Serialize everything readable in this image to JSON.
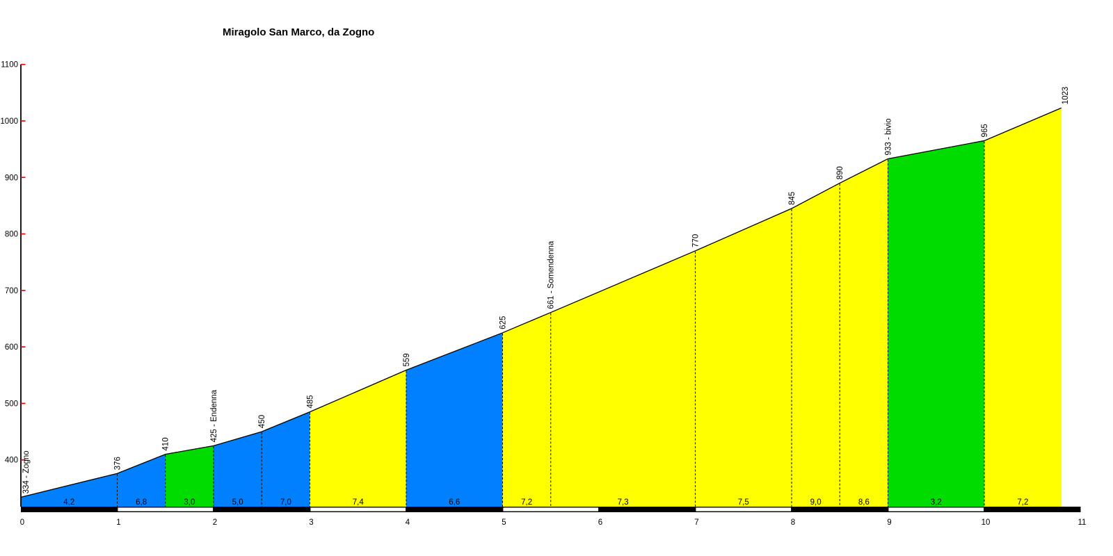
{
  "chart_data": {
    "type": "area",
    "title": "Miragolo San Marco, da Zogno",
    "x_unit": "km",
    "y_unit": "m",
    "xlim": [
      0,
      11
    ],
    "ylim": [
      317,
      1100
    ],
    "x_ticks": [
      0,
      1,
      2,
      3,
      4,
      5,
      6,
      7,
      8,
      9,
      10,
      11
    ],
    "y_ticks": [
      400,
      500,
      600,
      700,
      800,
      900,
      1000,
      1100
    ],
    "grid": false,
    "legend": false,
    "profile_points": [
      {
        "km": 0,
        "elev": 334,
        "label": "334 - Zogno"
      },
      {
        "km": 1,
        "elev": 376,
        "label": "376"
      },
      {
        "km": 1.5,
        "elev": 410,
        "label": "410"
      },
      {
        "km": 2,
        "elev": 425,
        "label": "425 - Endenna"
      },
      {
        "km": 2.5,
        "elev": 450,
        "label": "450"
      },
      {
        "km": 3,
        "elev": 485,
        "label": "485"
      },
      {
        "km": 4,
        "elev": 559,
        "label": "559"
      },
      {
        "km": 5,
        "elev": 625,
        "label": "625"
      },
      {
        "km": 5.5,
        "elev": 661,
        "label": "661 - Somendenna"
      },
      {
        "km": 7,
        "elev": 770,
        "label": "770"
      },
      {
        "km": 8,
        "elev": 845,
        "label": "845"
      },
      {
        "km": 8.5,
        "elev": 890,
        "label": "890"
      },
      {
        "km": 9,
        "elev": 933,
        "label": "933 - bivio"
      },
      {
        "km": 10,
        "elev": 965,
        "label": "965"
      },
      {
        "km": 10.8,
        "elev": 1023,
        "label": "1023"
      }
    ],
    "segments": [
      {
        "from_km": 0,
        "to_km": 1,
        "gradient_label": "4,2",
        "gradient_pct": 4.2,
        "color": "blue"
      },
      {
        "from_km": 1,
        "to_km": 1.5,
        "gradient_label": "6,8",
        "gradient_pct": 6.8,
        "color": "blue"
      },
      {
        "from_km": 1.5,
        "to_km": 2,
        "gradient_label": "3,0",
        "gradient_pct": 3.0,
        "color": "green"
      },
      {
        "from_km": 2,
        "to_km": 2.5,
        "gradient_label": "5,0",
        "gradient_pct": 5.0,
        "color": "blue"
      },
      {
        "from_km": 2.5,
        "to_km": 3,
        "gradient_label": "7,0",
        "gradient_pct": 7.0,
        "color": "blue"
      },
      {
        "from_km": 3,
        "to_km": 4,
        "gradient_label": "7,4",
        "gradient_pct": 7.4,
        "color": "yellow"
      },
      {
        "from_km": 4,
        "to_km": 5,
        "gradient_label": "6,6",
        "gradient_pct": 6.6,
        "color": "blue"
      },
      {
        "from_km": 5,
        "to_km": 5.5,
        "gradient_label": "7,2",
        "gradient_pct": 7.2,
        "color": "yellow"
      },
      {
        "from_km": 5.5,
        "to_km": 7,
        "gradient_label": "7,3",
        "gradient_pct": 7.3,
        "color": "yellow"
      },
      {
        "from_km": 7,
        "to_km": 8,
        "gradient_label": "7,5",
        "gradient_pct": 7.5,
        "color": "yellow"
      },
      {
        "from_km": 8,
        "to_km": 8.5,
        "gradient_label": "9,0",
        "gradient_pct": 9.0,
        "color": "yellow"
      },
      {
        "from_km": 8.5,
        "to_km": 9,
        "gradient_label": "8,6",
        "gradient_pct": 8.6,
        "color": "yellow"
      },
      {
        "from_km": 9,
        "to_km": 10,
        "gradient_label": "3,2",
        "gradient_pct": 3.2,
        "color": "green"
      },
      {
        "from_km": 10,
        "to_km": 10.8,
        "gradient_label": "7,2",
        "gradient_pct": 7.2,
        "color": "yellow"
      }
    ],
    "km_bar": {
      "black_kms": [
        0,
        2,
        4,
        6,
        8,
        10
      ],
      "white_kms": [
        1,
        3,
        5,
        7,
        9
      ]
    },
    "colors": {
      "blue": "#0080FF",
      "green": "#00DC00",
      "yellow": "#FFFF00",
      "tick_red": "#EE0000",
      "outline": "#000000",
      "bar_black": "#000000",
      "bar_white": "#FFFFFF",
      "text": "#000000",
      "background": "#FFFFFF"
    }
  }
}
